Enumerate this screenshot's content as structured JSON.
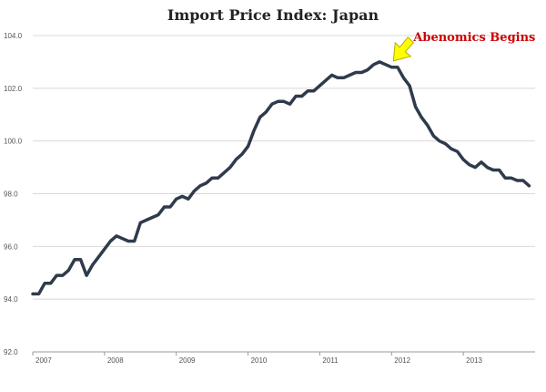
{
  "chart_data": {
    "type": "line",
    "title": "Import Price Index: Japan",
    "xlabel": "",
    "ylabel": "",
    "ylim": [
      92,
      104
    ],
    "grid": true,
    "yticks": [
      {
        "value": 92,
        "label": "92.0"
      },
      {
        "value": 94,
        "label": "94.0"
      },
      {
        "value": 96,
        "label": "96.0"
      },
      {
        "value": 98,
        "label": "98.0"
      },
      {
        "value": 100,
        "label": "100.0"
      },
      {
        "value": 102,
        "label": "102.0"
      },
      {
        "value": 104,
        "label": "104.0"
      }
    ],
    "xticks": [
      "2007",
      "2008",
      "2009",
      "2010",
      "2011",
      "2012",
      "2013"
    ],
    "x_start": "2007-01",
    "x_end": "2013-12",
    "series": [
      {
        "values": [
          94.2,
          94.2,
          94.6,
          94.6,
          94.9,
          94.9,
          95.1,
          95.5,
          95.5,
          94.9,
          95.3,
          95.6,
          95.9,
          96.2,
          96.4,
          96.3,
          96.2,
          96.2,
          96.9,
          97.0,
          97.1,
          97.2,
          97.5,
          97.5,
          97.8,
          97.9,
          97.8,
          98.1,
          98.3,
          98.4,
          98.6,
          98.6,
          98.8,
          99.0,
          99.3,
          99.5,
          99.8,
          100.4,
          100.9,
          101.1,
          101.4,
          101.5,
          101.5,
          101.4,
          101.7,
          101.7,
          101.9,
          101.9,
          102.1,
          102.3,
          102.5,
          102.4,
          102.4,
          102.5,
          102.6,
          102.6,
          102.7,
          102.9,
          103.0,
          102.9,
          102.8,
          102.8,
          102.4,
          102.1,
          101.3,
          100.9,
          100.6,
          100.2,
          100.0,
          99.9,
          99.7,
          99.6,
          99.3,
          99.1,
          99.0,
          99.2,
          99.0,
          98.9,
          98.9,
          98.6,
          98.6,
          98.5,
          98.5,
          98.3
        ]
      }
    ],
    "annotations": [
      {
        "text": "Abenomics Begins",
        "x_index": 60,
        "y": 102.9,
        "color": "#cc0000",
        "arrow_color": "#ffff00"
      }
    ],
    "line_color": "#2f3b4c"
  }
}
